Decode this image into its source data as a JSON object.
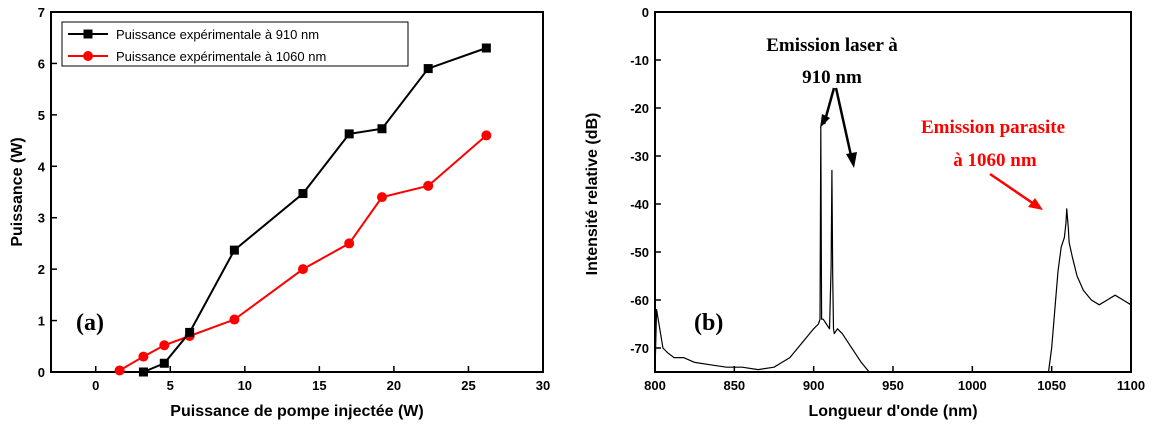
{
  "chart_data": [
    {
      "type": "line",
      "panel_label": "(a)",
      "xlabel": "Puissance de pompe injectée (W)",
      "ylabel": "Puissance (W)",
      "xlim": [
        -3,
        30
      ],
      "ylim": [
        0,
        7
      ],
      "xticks": [
        0,
        5,
        10,
        15,
        20,
        25,
        30
      ],
      "yticks": [
        0,
        1,
        2,
        3,
        4,
        5,
        6,
        7
      ],
      "legend_position": "top-left",
      "series": [
        {
          "name": "Puissance expérimentale à 910 nm",
          "color": "#000000",
          "marker": "square",
          "x": [
            3.2,
            4.6,
            6.3,
            9.3,
            13.9,
            17.0,
            19.2,
            22.3,
            26.2
          ],
          "y": [
            0.0,
            0.17,
            0.77,
            2.37,
            3.47,
            4.63,
            4.73,
            5.9,
            6.3
          ]
        },
        {
          "name": "Puissance expérimentale à 1060 nm",
          "color": "#ff0000",
          "marker": "circle",
          "x": [
            1.6,
            3.2,
            4.6,
            6.3,
            9.3,
            13.9,
            17.0,
            19.2,
            22.3,
            26.2
          ],
          "y": [
            0.03,
            0.3,
            0.52,
            0.7,
            1.02,
            2.0,
            2.5,
            3.4,
            3.62,
            4.6
          ]
        }
      ]
    },
    {
      "type": "line",
      "panel_label": "(b)",
      "xlabel": "Longueur d'onde (nm)",
      "ylabel": "Intensité relative (dB)",
      "xlim": [
        800,
        1100
      ],
      "ylim": [
        -75,
        0
      ],
      "xticks": [
        800,
        850,
        900,
        950,
        1000,
        1050,
        1100
      ],
      "yticks": [
        0,
        -10,
        -20,
        -30,
        -40,
        -50,
        -60,
        -70
      ],
      "series": [
        {
          "color": "#000000",
          "x": [
            800,
            801,
            803,
            805,
            808,
            812,
            818,
            825,
            835,
            845,
            855,
            865,
            875,
            880,
            885,
            890,
            895,
            900,
            903,
            904,
            904.5,
            905,
            906,
            908,
            910,
            911,
            911.5,
            912,
            912.5,
            913,
            915,
            918,
            922,
            926,
            930,
            935,
            940,
            1000,
            1048,
            1050,
            1052,
            1054,
            1056,
            1058,
            1059,
            1059.5,
            1060,
            1060.5,
            1061,
            1063,
            1066,
            1070,
            1075,
            1080,
            1085,
            1090,
            1095,
            1100
          ],
          "y": [
            -75,
            -62,
            -66,
            -70,
            -71,
            -72,
            -72,
            -73,
            -73.5,
            -74,
            -74,
            -74.5,
            -74,
            -73,
            -72,
            -70,
            -68,
            -66,
            -65,
            -64,
            -24,
            -64,
            -64,
            -65,
            -66,
            -53,
            -33,
            -55,
            -66,
            -67,
            -66,
            -67,
            -69,
            -71,
            -73,
            -75,
            -75,
            -75,
            -75,
            -70,
            -62,
            -54,
            -49,
            -47,
            -44,
            -41,
            -43,
            -45,
            -48,
            -51,
            -55,
            -58,
            -60,
            -61,
            -60,
            -59,
            -60,
            -61
          ]
        }
      ],
      "annotations": [
        {
          "text_line1": "Emission laser à",
          "text_line2": "910 nm",
          "color": "#000000"
        },
        {
          "text_line1": "Emission parasite",
          "text_line2": "à 1060 nm",
          "color": "#ff0000"
        }
      ]
    }
  ]
}
